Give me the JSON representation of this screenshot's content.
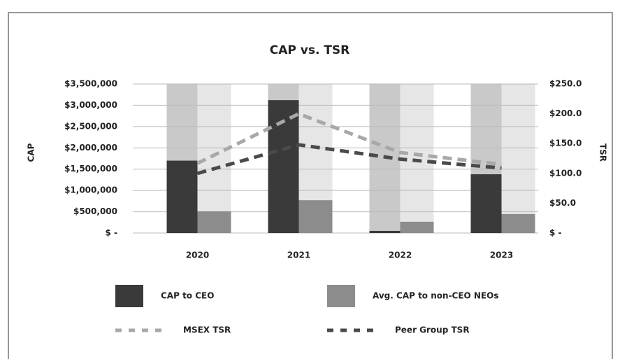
{
  "chart_data": {
    "type": "bar",
    "title": "CAP vs. TSR",
    "y_label": "CAP",
    "y2_label": "TSR",
    "categories": [
      "2020",
      "2021",
      "2022",
      "2023"
    ],
    "series": [
      {
        "name": "CAP to CEO",
        "color": "#3a3a3a",
        "type": "bar",
        "values": [
          1700000,
          3120000,
          50000,
          1380000
        ]
      },
      {
        "name": "Avg. CAP to non-CEO NEOs",
        "color": "#8c8c8c",
        "type": "bar",
        "values": [
          510000,
          770000,
          265000,
          445000
        ]
      },
      {
        "name": "MSEX TSR",
        "color": "#a8a8a8",
        "type": "line",
        "axis": "y2",
        "values": [
          117,
          200,
          135,
          115
        ]
      },
      {
        "name": "Peer Group TSR",
        "color": "#4a4a4a",
        "type": "line",
        "axis": "y2",
        "values": [
          100,
          148,
          124,
          109
        ]
      }
    ],
    "ylim": [
      0,
      3500000
    ],
    "yticks": [
      {
        "value": 0,
        "label": "$ -"
      },
      {
        "value": 500000,
        "label": "$500,000"
      },
      {
        "value": 1000000,
        "label": "$1,000,000"
      },
      {
        "value": 1500000,
        "label": "$1,500,000"
      },
      {
        "value": 2000000,
        "label": "$2,000,000"
      },
      {
        "value": 2500000,
        "label": "$2,500,000"
      },
      {
        "value": 3000000,
        "label": "$3,000,000"
      },
      {
        "value": 3500000,
        "label": "$3,500,000"
      }
    ],
    "y2lim": [
      0,
      250
    ],
    "y2ticks": [
      {
        "value": 0,
        "label": "$ -"
      },
      {
        "value": 50,
        "label": "$50.0"
      },
      {
        "value": 100,
        "label": "$100.0"
      },
      {
        "value": 150,
        "label": "$150.0"
      },
      {
        "value": 200,
        "label": "$200.0"
      },
      {
        "value": 250,
        "label": "$250.0"
      }
    ],
    "grid": true
  }
}
